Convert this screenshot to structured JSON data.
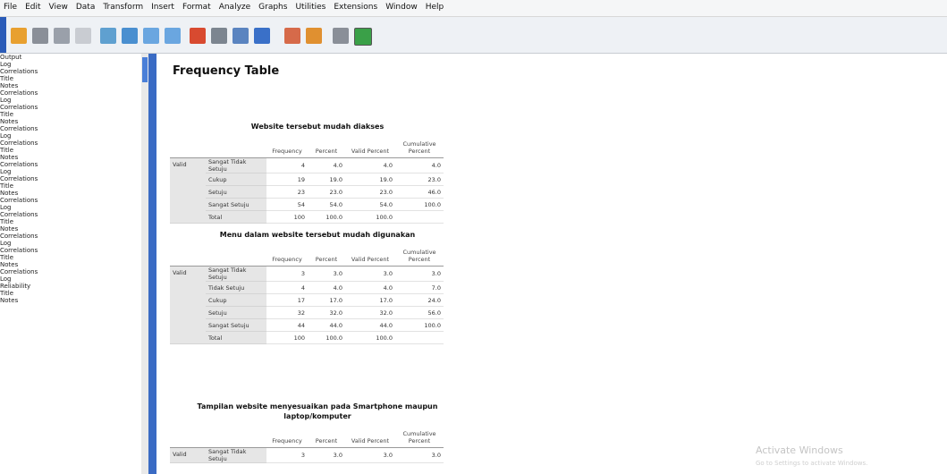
{
  "menu": [
    "File",
    "Edit",
    "View",
    "Data",
    "Transform",
    "Insert",
    "Format",
    "Analyze",
    "Graphs",
    "Utilities",
    "Extensions",
    "Window",
    "Help"
  ],
  "tree": {
    "label": "Output",
    "children": [
      {
        "label": "Log"
      },
      {
        "label": "Correlations",
        "children": [
          {
            "label": "Title"
          },
          {
            "label": "Notes"
          },
          {
            "label": "Correlations"
          }
        ]
      },
      {
        "label": "Log"
      },
      {
        "label": "Correlations",
        "children": [
          {
            "label": "Title"
          },
          {
            "label": "Notes"
          },
          {
            "label": "Correlations"
          }
        ]
      },
      {
        "label": "Log"
      },
      {
        "label": "Correlations",
        "children": [
          {
            "label": "Title"
          },
          {
            "label": "Notes"
          },
          {
            "label": "Correlations"
          }
        ]
      },
      {
        "label": "Log"
      },
      {
        "label": "Correlations",
        "children": [
          {
            "label": "Title"
          },
          {
            "label": "Notes"
          },
          {
            "label": "Correlations"
          }
        ]
      },
      {
        "label": "Log"
      },
      {
        "label": "Correlations",
        "children": [
          {
            "label": "Title"
          },
          {
            "label": "Notes"
          },
          {
            "label": "Correlations"
          }
        ]
      },
      {
        "label": "Log"
      },
      {
        "label": "Correlations",
        "children": [
          {
            "label": "Title"
          },
          {
            "label": "Notes"
          },
          {
            "label": "Correlations"
          }
        ]
      },
      {
        "label": "Log"
      },
      {
        "label": "Reliability",
        "children": [
          {
            "label": "Title"
          },
          {
            "label": "Notes"
          }
        ]
      }
    ]
  },
  "output": {
    "heading": "Frequency Table",
    "columns": [
      "Frequency",
      "Percent",
      "Valid Percent",
      "Cumulative Percent"
    ],
    "tables": [
      {
        "title": "Website tersebut mudah diakses",
        "group": "Valid",
        "rows": [
          {
            "label": "Sangat Tidak Setuju",
            "cells": [
              "4",
              "4.0",
              "4.0",
              "4.0"
            ]
          },
          {
            "label": "Cukup",
            "cells": [
              "19",
              "19.0",
              "19.0",
              "23.0"
            ]
          },
          {
            "label": "Setuju",
            "cells": [
              "23",
              "23.0",
              "23.0",
              "46.0"
            ]
          },
          {
            "label": "Sangat Setuju",
            "cells": [
              "54",
              "54.0",
              "54.0",
              "100.0"
            ]
          },
          {
            "label": "Total",
            "cells": [
              "100",
              "100.0",
              "100.0"
            ]
          }
        ]
      },
      {
        "title": "Menu dalam website tersebut mudah digunakan",
        "group": "Valid",
        "rows": [
          {
            "label": "Sangat Tidak Setuju",
            "cells": [
              "3",
              "3.0",
              "3.0",
              "3.0"
            ]
          },
          {
            "label": "Tidak Setuju",
            "cells": [
              "4",
              "4.0",
              "4.0",
              "7.0"
            ]
          },
          {
            "label": "Cukup",
            "cells": [
              "17",
              "17.0",
              "17.0",
              "24.0"
            ]
          },
          {
            "label": "Setuju",
            "cells": [
              "32",
              "32.0",
              "32.0",
              "56.0"
            ]
          },
          {
            "label": "Sangat Setuju",
            "cells": [
              "44",
              "44.0",
              "44.0",
              "100.0"
            ]
          },
          {
            "label": "Total",
            "cells": [
              "100",
              "100.0",
              "100.0"
            ]
          }
        ]
      },
      {
        "title": "Tampilan website menyesuaikan pada Smartphone maupun laptop/komputer",
        "group": "Valid",
        "rows": [
          {
            "label": "Sangat Tidak Setuju",
            "cells": [
              "3",
              "3.0",
              "3.0",
              "3.0"
            ]
          }
        ]
      }
    ]
  },
  "watermark": {
    "title": "Activate Windows",
    "subtitle": "Go to Settings to activate Windows."
  }
}
